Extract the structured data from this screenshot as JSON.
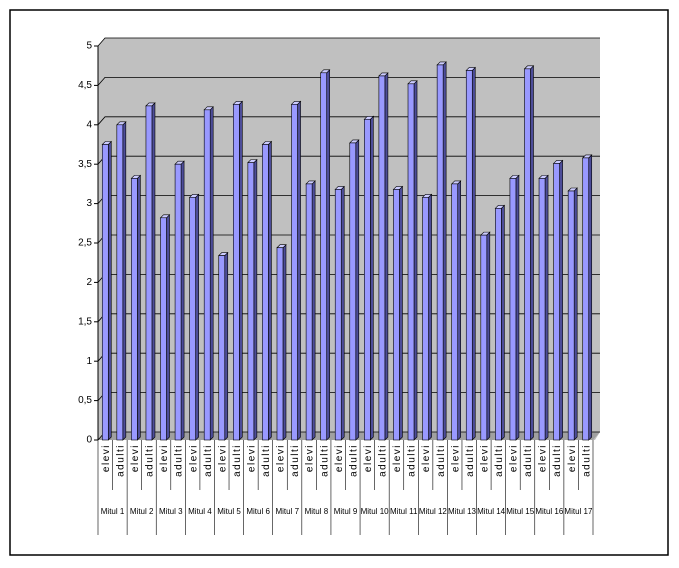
{
  "chart_data": {
    "type": "bar",
    "categories": [
      "elevi",
      "adulti",
      "elevi",
      "adulti",
      "elevi",
      "adulti",
      "elevi",
      "adulti",
      "elevi",
      "adulti",
      "elevi",
      "adulti",
      "elevi",
      "adulti",
      "elevi",
      "adulti",
      "elevi",
      "adulti",
      "elevi",
      "adulti",
      "elevi",
      "adulti",
      "elevi",
      "adulti",
      "elevi",
      "adulti",
      "elevi",
      "adulti",
      "elevi",
      "adulti",
      "elevi",
      "adulti",
      "elevi",
      "adulti"
    ],
    "groups": [
      "Mitul 1",
      "Mitul 2",
      "Mitul 3",
      "Mitul 4",
      "Mitul 5",
      "Mitul 6",
      "Mitul 7",
      "Mitul 8",
      "Mitul 9",
      "Mitul 10",
      "Mitul 11",
      "Mitul 12",
      "Mitul 13",
      "Mitul 14",
      "Mitul 15",
      "Mitul 16",
      "Mitul 17"
    ],
    "values": [
      3.75,
      4.0,
      3.32,
      4.24,
      2.82,
      3.5,
      3.08,
      4.19,
      2.34,
      4.26,
      3.52,
      3.75,
      2.44,
      4.26,
      3.25,
      4.66,
      3.18,
      3.77,
      4.07,
      4.62,
      3.18,
      4.52,
      3.08,
      4.76,
      3.25,
      4.69,
      2.6,
      2.94,
      3.32,
      4.71,
      3.32,
      3.51,
      3.16,
      3.58
    ],
    "color": "#9999ff",
    "ylim": [
      0,
      5
    ],
    "yticks": [
      0,
      {
        "value": 0.5,
        "label": "0,5"
      },
      1,
      {
        "value": 1.5,
        "label": "1,5"
      },
      2,
      {
        "value": 2.5,
        "label": "2,5"
      },
      3,
      {
        "value": 3.5,
        "label": "3,5"
      },
      4,
      {
        "value": 4.5,
        "label": "4,5"
      },
      5
    ],
    "grid": true
  }
}
